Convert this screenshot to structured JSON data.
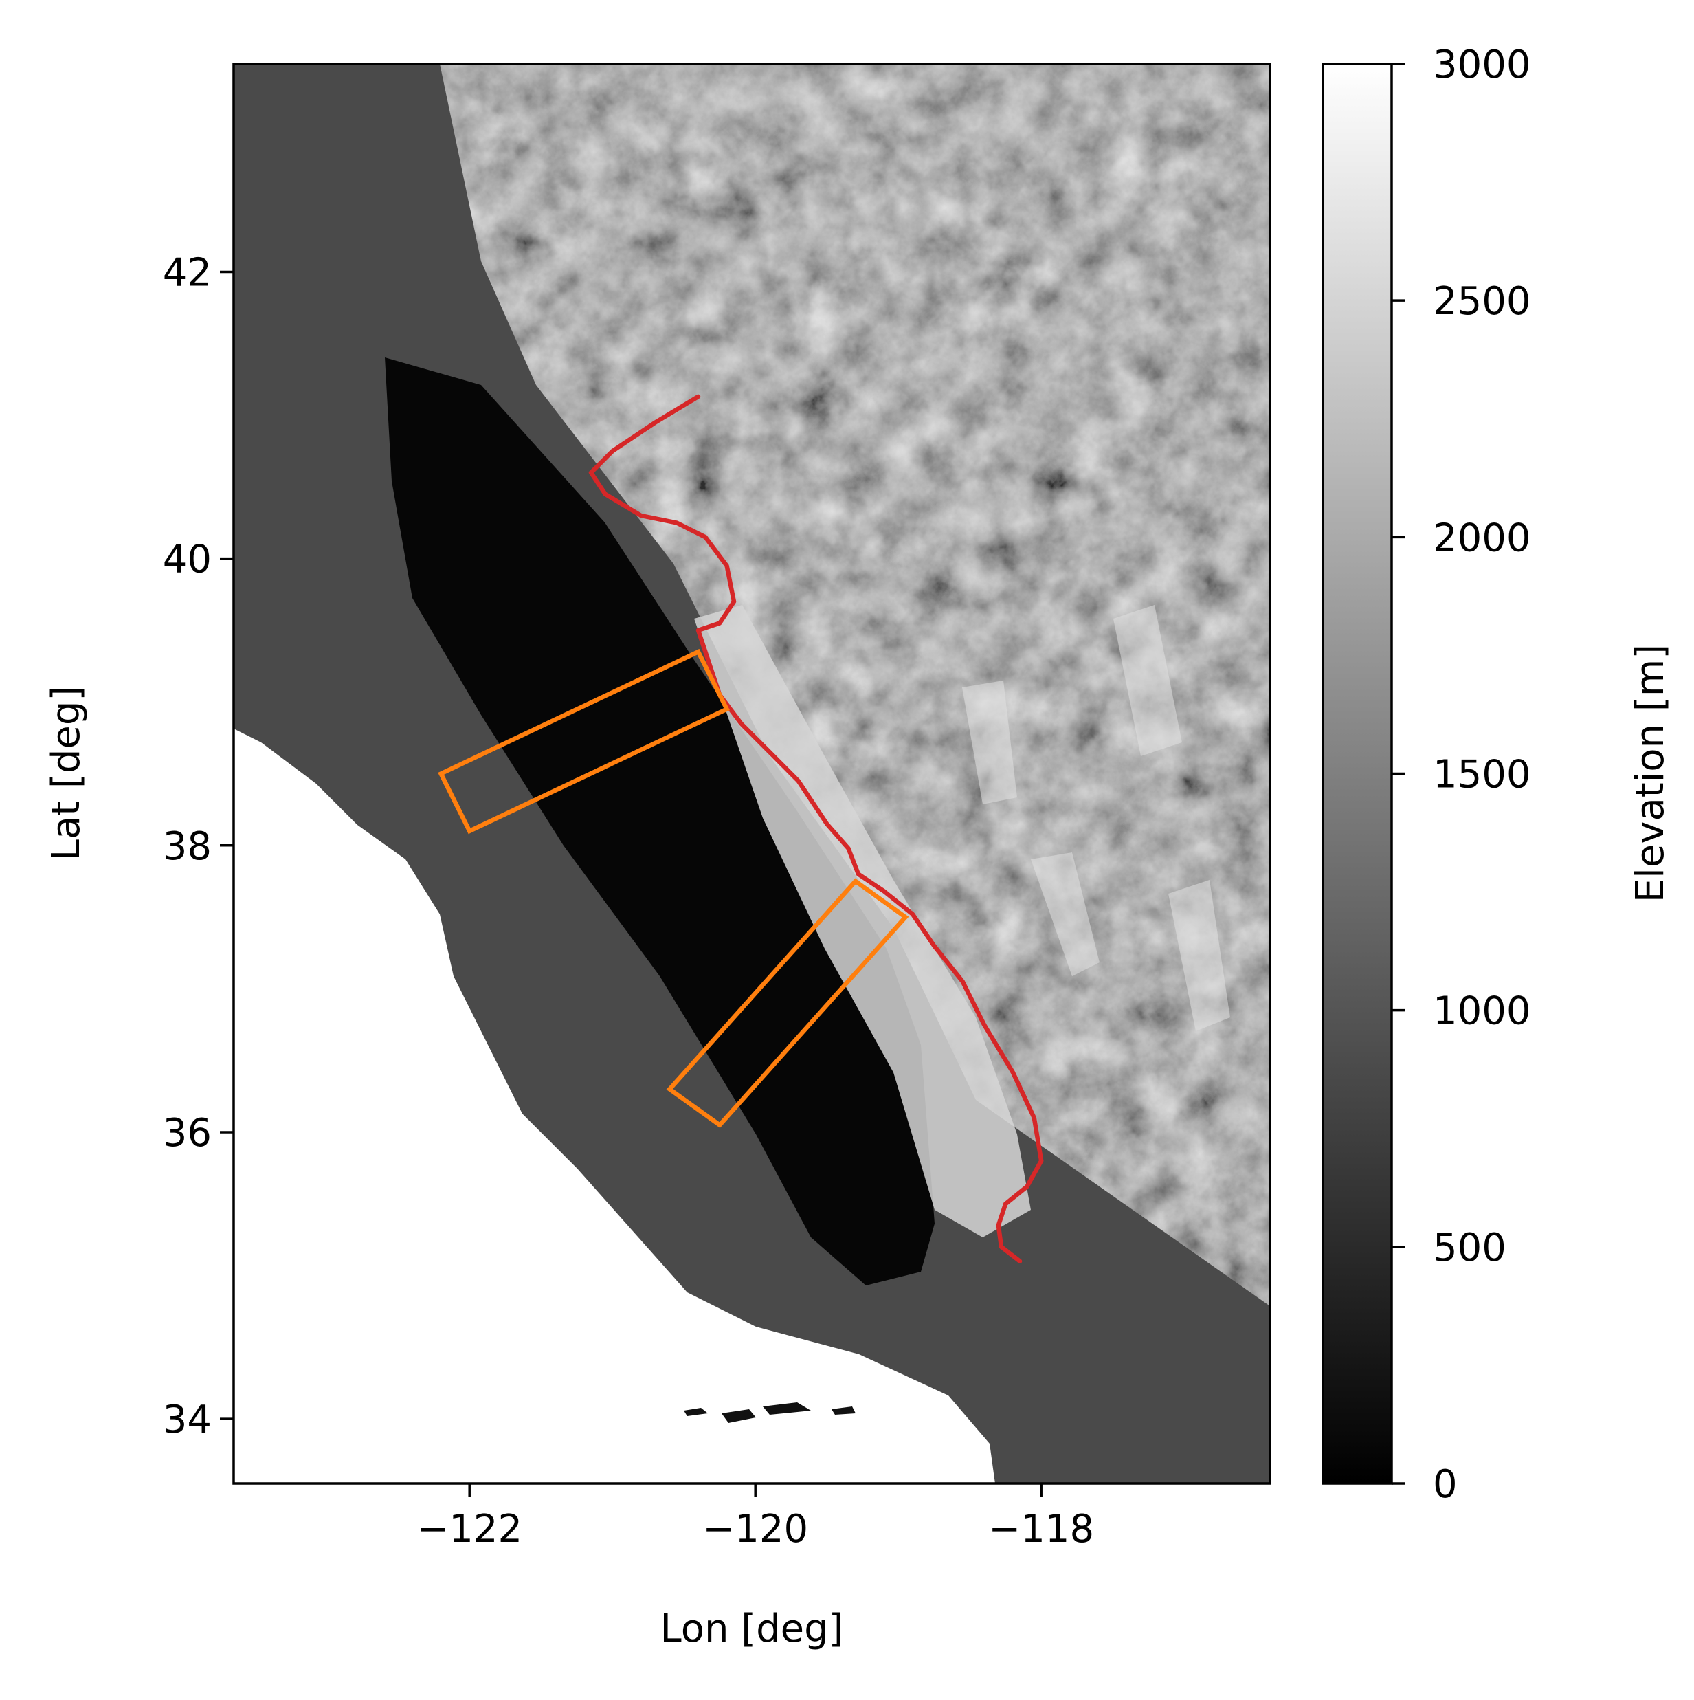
{
  "chart_data": [
    {
      "type": "heatmap",
      "title": "",
      "xlabel": "Lon [deg]",
      "ylabel": "Lat [deg]",
      "xlim": [
        -123.65,
        -116.4
      ],
      "ylim": [
        33.55,
        43.45
      ],
      "x_ticks": [
        -122,
        -120,
        -118
      ],
      "x_tick_labels": [
        "−122",
        "−120",
        "−118"
      ],
      "y_ticks": [
        34,
        36,
        38,
        40,
        42
      ],
      "y_tick_labels": [
        "34",
        "36",
        "38",
        "40",
        "42"
      ],
      "colormap": "gray",
      "colorbar": {
        "label": "Elevation [m]",
        "min": 0,
        "max": 3000,
        "ticks": [
          0,
          500,
          1000,
          1500,
          2000,
          2500,
          3000
        ],
        "tick_labels": [
          "0",
          "500",
          "1000",
          "1500",
          "2000",
          "2500",
          "3000"
        ]
      },
      "grid": false,
      "overlays": [
        {
          "kind": "line",
          "color": "#d62728",
          "points": [
            [
              -120.4,
              41.13
            ],
            [
              -120.7,
              40.95
            ],
            [
              -121.0,
              40.75
            ],
            [
              -121.15,
              40.6
            ],
            [
              -121.05,
              40.45
            ],
            [
              -120.8,
              40.3
            ],
            [
              -120.55,
              40.25
            ],
            [
              -120.35,
              40.15
            ],
            [
              -120.2,
              39.95
            ],
            [
              -120.15,
              39.7
            ],
            [
              -120.25,
              39.55
            ],
            [
              -120.4,
              39.5
            ],
            [
              -120.35,
              39.35
            ],
            [
              -120.25,
              39.05
            ],
            [
              -120.1,
              38.85
            ],
            [
              -119.85,
              38.6
            ],
            [
              -119.7,
              38.45
            ],
            [
              -119.6,
              38.3
            ],
            [
              -119.5,
              38.15
            ],
            [
              -119.35,
              37.98
            ],
            [
              -119.28,
              37.8
            ],
            [
              -119.1,
              37.68
            ],
            [
              -118.9,
              37.52
            ],
            [
              -118.75,
              37.3
            ],
            [
              -118.55,
              37.05
            ],
            [
              -118.4,
              36.75
            ],
            [
              -118.2,
              36.42
            ],
            [
              -118.05,
              36.1
            ],
            [
              -118.0,
              35.8
            ],
            [
              -118.1,
              35.62
            ],
            [
              -118.25,
              35.5
            ],
            [
              -118.3,
              35.35
            ],
            [
              -118.28,
              35.2
            ],
            [
              -118.15,
              35.1
            ]
          ]
        },
        {
          "kind": "polygon",
          "color": "#ff7f0e",
          "points": [
            [
              -122.2,
              38.5
            ],
            [
              -120.4,
              39.35
            ],
            [
              -120.2,
              38.95
            ],
            [
              -122.0,
              38.1
            ]
          ]
        },
        {
          "kind": "polygon",
          "color": "#ff7f0e",
          "points": [
            [
              -119.3,
              37.75
            ],
            [
              -118.95,
              37.5
            ],
            [
              -120.25,
              36.05
            ],
            [
              -120.6,
              36.3
            ]
          ]
        }
      ]
    }
  ]
}
